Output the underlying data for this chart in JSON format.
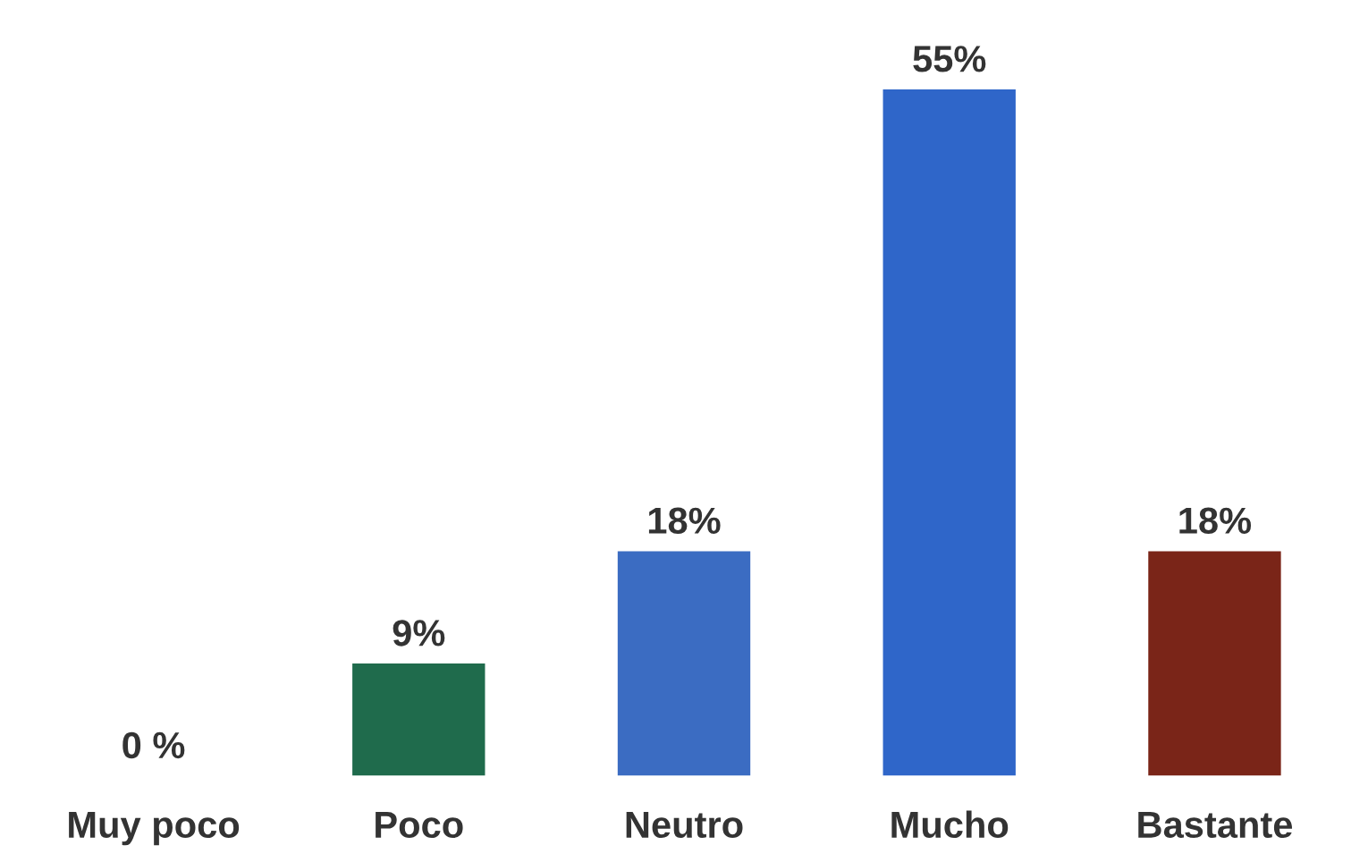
{
  "chart_data": {
    "type": "bar",
    "categories": [
      "Muy poco",
      "Poco",
      "Neutro",
      "Mucho",
      "Bastante"
    ],
    "values": [
      0,
      9,
      18,
      55,
      18
    ],
    "value_labels": [
      "0 %",
      "9%",
      "18%",
      "55%",
      "18%"
    ],
    "colors": [
      "#1f4f9e",
      "#1f6b4c",
      "#3b6cc2",
      "#2f66c9",
      "#7a2518"
    ]
  }
}
